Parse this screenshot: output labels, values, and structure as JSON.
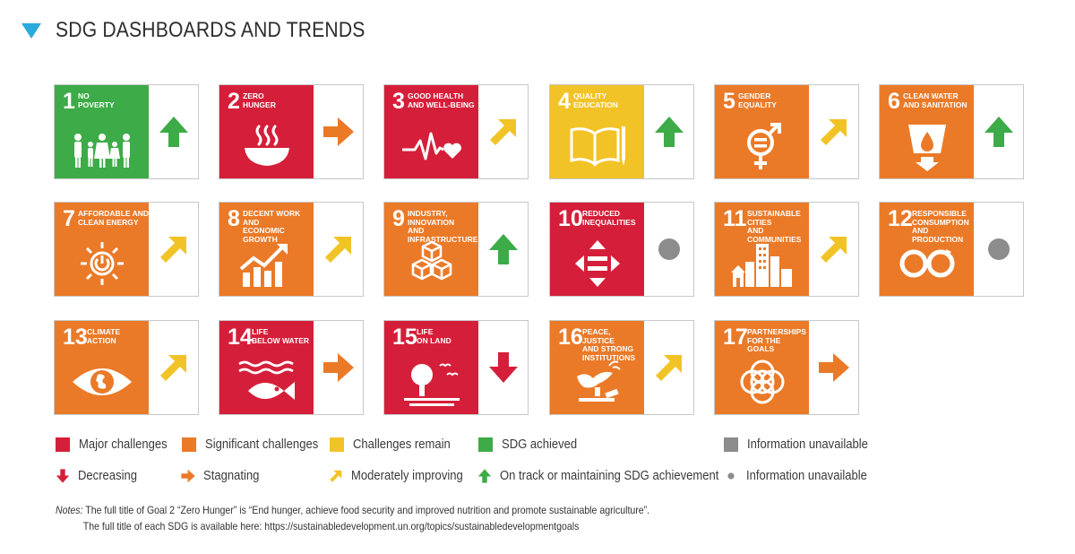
{
  "header": {
    "title": "SDG DASHBOARDS AND TRENDS"
  },
  "colors": {
    "red": "#d51f3a",
    "orange": "#ea7a28",
    "yellow": "#f2c326",
    "green": "#3dab47",
    "grey": "#8c8c8c",
    "accent": "#2aa9dc"
  },
  "goals": [
    {
      "num": "1",
      "name": "NO\nPOVERTY",
      "status": "green",
      "trend": "up",
      "icon": "family-icon"
    },
    {
      "num": "2",
      "name": "ZERO\nHUNGER",
      "status": "red",
      "trend": "right",
      "icon": "bowl-icon"
    },
    {
      "num": "3",
      "name": "GOOD HEALTH\nAND WELL-BEING",
      "status": "red",
      "trend": "diag",
      "icon": "heartbeat-icon"
    },
    {
      "num": "4",
      "name": "QUALITY\nEDUCATION",
      "status": "yellow",
      "trend": "up",
      "icon": "book-icon"
    },
    {
      "num": "5",
      "name": "GENDER\nEQUALITY",
      "status": "orange",
      "trend": "diag",
      "icon": "gender-icon"
    },
    {
      "num": "6",
      "name": "CLEAN WATER\nAND SANITATION",
      "status": "orange",
      "trend": "up",
      "icon": "water-icon"
    },
    {
      "num": "7",
      "name": "AFFORDABLE AND\nCLEAN ENERGY",
      "status": "orange",
      "trend": "diag",
      "icon": "sun-power-icon"
    },
    {
      "num": "8",
      "name": "DECENT WORK AND\nECONOMIC GROWTH",
      "status": "orange",
      "trend": "diag",
      "icon": "growth-chart-icon"
    },
    {
      "num": "9",
      "name": "INDUSTRY, INNOVATION\nAND INFRASTRUCTURE",
      "status": "orange",
      "trend": "up",
      "icon": "cubes-icon"
    },
    {
      "num": "10",
      "name": "REDUCED\nINEQUALITIES",
      "status": "red",
      "trend": "na",
      "icon": "equals-arrows-icon"
    },
    {
      "num": "11",
      "name": "SUSTAINABLE CITIES\nAND COMMUNITIES",
      "status": "orange",
      "trend": "diag",
      "icon": "city-icon"
    },
    {
      "num": "12",
      "name": "RESPONSIBLE\nCONSUMPTION\nAND PRODUCTION",
      "status": "orange",
      "trend": "na",
      "icon": "infinity-icon"
    },
    {
      "num": "13",
      "name": "CLIMATE\nACTION",
      "status": "orange",
      "trend": "diag",
      "icon": "eye-globe-icon"
    },
    {
      "num": "14",
      "name": "LIFE\nBELOW WATER",
      "status": "red",
      "trend": "right",
      "icon": "fish-icon"
    },
    {
      "num": "15",
      "name": "LIFE\nON LAND",
      "status": "red",
      "trend": "down",
      "icon": "tree-icon"
    },
    {
      "num": "16",
      "name": "PEACE, JUSTICE\nAND STRONG\nINSTITUTIONS",
      "status": "orange",
      "trend": "diag",
      "icon": "dove-gavel-icon"
    },
    {
      "num": "17",
      "name": "PARTNERSHIPS\nFOR THE GOALS",
      "status": "orange",
      "trend": "right",
      "icon": "rings-icon"
    }
  ],
  "legend": {
    "status": [
      {
        "label": "Major challenges",
        "color": "red"
      },
      {
        "label": "Significant challenges",
        "color": "orange"
      },
      {
        "label": "Challenges remain",
        "color": "yellow"
      },
      {
        "label": "SDG achieved",
        "color": "green"
      },
      {
        "label": "Information unavailable",
        "color": "grey"
      }
    ],
    "trends": [
      {
        "label": "Decreasing",
        "trend": "down"
      },
      {
        "label": "Stagnating",
        "trend": "right"
      },
      {
        "label": "Moderately improving",
        "trend": "diag"
      },
      {
        "label": "On track or maintaining SDG achievement",
        "trend": "up"
      },
      {
        "label": "Information unavailable",
        "trend": "na"
      }
    ]
  },
  "notes": {
    "label": "Notes:",
    "line1": " The full title of Goal 2 “Zero Hunger” is “End hunger, achieve food security and improved nutrition and promote sustainable agriculture”.",
    "line2": "The full title of each SDG is available here: https://sustainabledevelopment.un.org/topics/sustainabledevelopmentgoals"
  }
}
